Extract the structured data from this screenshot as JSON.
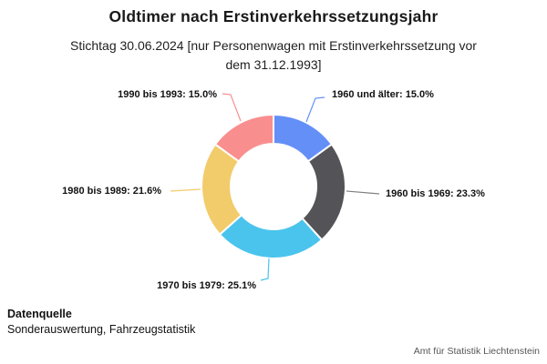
{
  "header": {
    "title": "Oldtimer nach Erstinverkehrssetzungsjahr",
    "subtitle_line1": "Stichtag 30.06.2024 [nur Personenwagen mit Erstinverkehrssetzung vor",
    "subtitle_line2": "dem 31.12.1993]"
  },
  "chart_data": {
    "type": "pie",
    "subtype": "donut",
    "title": "Oldtimer nach Erstinverkehrssetzungsjahr",
    "subtitle": "Stichtag 30.06.2024 [nur Personenwagen mit Erstinverkehrssetzung vor dem 31.12.1993]",
    "unit": "%",
    "start_angle_deg": 0,
    "direction": "clockwise",
    "inner_radius_ratio": 0.595,
    "legend": "none",
    "slices": [
      {
        "category": "1960 und älter",
        "value": 15.0,
        "display": "1960 und älter: 15.0%",
        "color": "#648ff7"
      },
      {
        "category": "1960 bis 1969",
        "value": 23.3,
        "display": "1960 bis 1969: 23.3%",
        "color": "#545458"
      },
      {
        "category": "1970 bis 1979",
        "value": 25.1,
        "display": "1970 bis 1979: 25.1%",
        "color": "#4ac4ed"
      },
      {
        "category": "1980 bis 1989",
        "value": 21.6,
        "display": "1980 bis 1989: 21.6%",
        "color": "#f2cc6b"
      },
      {
        "category": "1990 bis 1993",
        "value": 15.0,
        "display": "1990 bis 1993: 15.0%",
        "color": "#f98e8e"
      }
    ]
  },
  "footer": {
    "source_label": "Datenquelle",
    "source_value": "Sonderauswertung, Fahrzeugstatistik",
    "credit": "Amt für Statistik Liechtenstein"
  }
}
